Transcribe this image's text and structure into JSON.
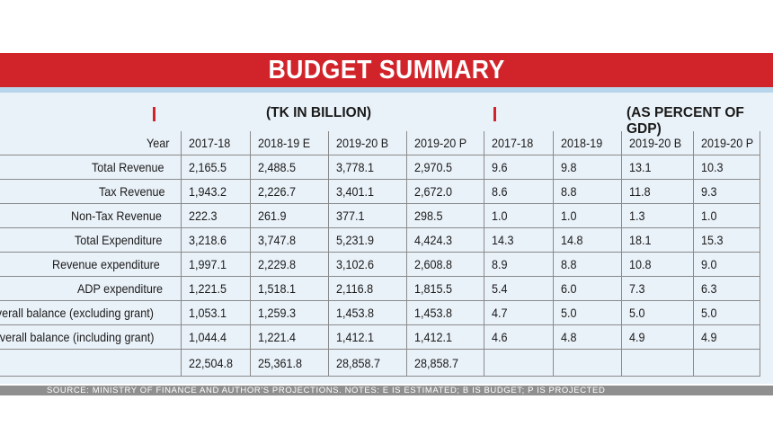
{
  "title": "BUDGET SUMMARY",
  "group_headers": {
    "billions": "(TK IN BILLION)",
    "percent": "(AS PERCENT OF GDP)"
  },
  "columns": [
    "Year",
    "2017-18",
    "2018-19 E",
    "2019-20 B",
    "2019-20 P",
    "2017-18",
    "2018-19",
    "2019-20 B",
    "2019-20 P"
  ],
  "rows": [
    {
      "label": "Total Revenue",
      "values": [
        "2,165.5",
        "2,488.5",
        "3,778.1",
        "2,970.5",
        "9.6",
        "9.8",
        "13.1",
        "10.3"
      ]
    },
    {
      "label": "Tax Revenue",
      "values": [
        "1,943.2",
        "2,226.7",
        "3,401.1",
        "2,672.0",
        "8.6",
        "8.8",
        "11.8",
        "9.3"
      ]
    },
    {
      "label": "Non-Tax Revenue",
      "values": [
        "222.3",
        "261.9",
        "377.1",
        "298.5",
        "1.0",
        "1.0",
        "1.3",
        "1.0"
      ]
    },
    {
      "label": "Total Expenditure",
      "values": [
        "3,218.6",
        "3,747.8",
        "5,231.9",
        "4,424.3",
        "14.3",
        "14.8",
        "18.1",
        "15.3"
      ]
    },
    {
      "label": "Revenue expenditure",
      "values": [
        "1,997.1",
        "2,229.8",
        "3,102.6",
        "2,608.8",
        "8.9",
        "8.8",
        "10.8",
        "9.0"
      ]
    },
    {
      "label": "ADP expenditure",
      "values": [
        "1,221.5",
        "1,518.1",
        "2,116.8",
        "1,815.5",
        "5.4",
        "6.0",
        "7.3",
        "6.3"
      ]
    },
    {
      "label": "Overall balance (excluding grant)",
      "values": [
        "1,053.1",
        "1,259.3",
        "1,453.8",
        "1,453.8",
        "4.7",
        "5.0",
        "5.0",
        "5.0"
      ]
    },
    {
      "label": "Overall balance (including grant)",
      "values": [
        "1,044.4",
        "1,221.4",
        "1,412.1",
        "1,412.1",
        "4.6",
        "4.8",
        "4.9",
        "4.9"
      ]
    },
    {
      "label": "",
      "values": [
        "22,504.8",
        "25,361.8",
        "28,858.7",
        "28,858.7",
        "",
        "",
        "",
        ""
      ]
    }
  ],
  "footer": "SOURCE: MINISTRY OF FINANCE AND AUTHOR'S PROJECTIONS.  NOTES:  E IS ESTIMATED; B IS BUDGET; P IS PROJECTED",
  "colors": {
    "banner": "#d1242a",
    "panel": "#eaf2f9",
    "rule": "#b7d5ea",
    "footer": "#8f8f8f"
  }
}
